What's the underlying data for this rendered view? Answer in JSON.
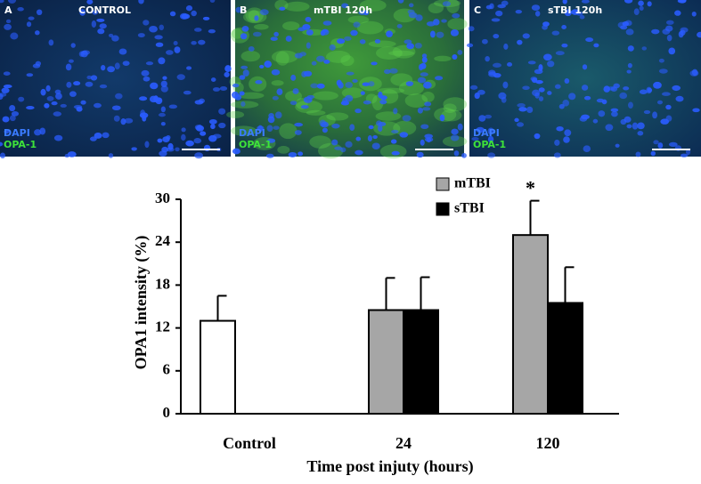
{
  "panels": [
    {
      "letter": "A",
      "label": "CONTROL",
      "stains": [
        "DAPI",
        "OPA-1"
      ]
    },
    {
      "letter": "B",
      "label": "mTBI  120h",
      "stains": [
        "DAPI",
        "OPA-1"
      ]
    },
    {
      "letter": "C",
      "label": "sTBI 120h",
      "stains": [
        "DAPI",
        "OPA-1"
      ]
    }
  ],
  "chart_data": {
    "type": "bar",
    "categories": [
      "Control",
      "24",
      "120"
    ],
    "series": [
      {
        "color": "#ffffff",
        "values": [
          13,
          null,
          null
        ],
        "errors": [
          3.5,
          null,
          null
        ]
      },
      {
        "name": "mTBI",
        "color": "#a6a6a6",
        "values": [
          null,
          14.5,
          25
        ],
        "errors": [
          null,
          4.5,
          4.8
        ]
      },
      {
        "name": "sTBI",
        "color": "#000000",
        "values": [
          null,
          14.5,
          15.5
        ],
        "errors": [
          null,
          4.6,
          5
        ]
      }
    ],
    "ylim": [
      0,
      30
    ],
    "yticks": [
      0,
      6,
      12,
      18,
      24,
      30
    ],
    "ylabel": "OPA1 intensity (%)",
    "xlabel": "Time post injuty (hours)",
    "annotation": "*"
  }
}
